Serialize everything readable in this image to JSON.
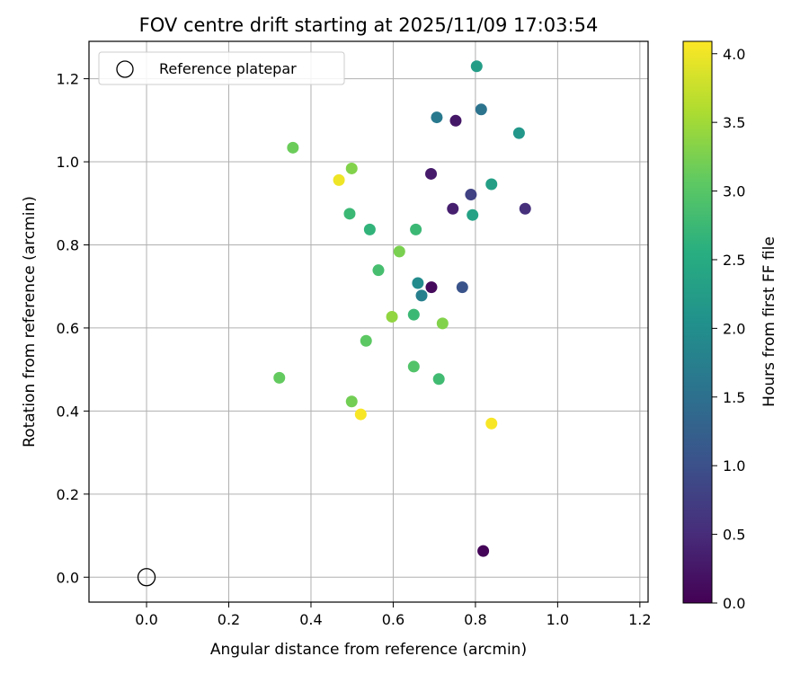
{
  "chart_data": {
    "type": "scatter",
    "title": "FOV centre drift starting at 2025/11/09 17:03:54",
    "xlabel": "Angular distance from reference (arcmin)",
    "ylabel": "Rotation from reference (arcmin)",
    "xlim": [
      -0.14,
      1.22
    ],
    "ylim": [
      -0.06,
      1.29
    ],
    "xticks": [
      0.0,
      0.2,
      0.4,
      0.6,
      0.8,
      1.0,
      1.2
    ],
    "yticks": [
      0.0,
      0.2,
      0.4,
      0.6,
      0.8,
      1.0,
      1.2
    ],
    "xtick_labels": [
      "0.0",
      "0.2",
      "0.4",
      "0.6",
      "0.8",
      "1.0",
      "1.2"
    ],
    "ytick_labels": [
      "0.0",
      "0.2",
      "0.4",
      "0.6",
      "0.8",
      "1.0",
      "1.2"
    ],
    "grid": true,
    "legend": {
      "position": "top-left",
      "entries": [
        {
          "label": "Reference platepar",
          "marker": "open-circle"
        }
      ]
    },
    "reference_point": {
      "x": 0.0,
      "y": 0.0
    },
    "colorbar": {
      "label": "Hours from first FF file",
      "colormap": "viridis",
      "range": [
        0.0,
        4.09
      ],
      "ticks": [
        0.0,
        0.5,
        1.0,
        1.5,
        2.0,
        2.5,
        3.0,
        3.5,
        4.0
      ],
      "tick_labels": [
        "0.0",
        "0.5",
        "1.0",
        "1.5",
        "2.0",
        "2.5",
        "3.0",
        "3.5",
        "4.0"
      ]
    },
    "points": [
      {
        "x": 0.819,
        "y": 0.063,
        "hours": 0.05
      },
      {
        "x": 0.693,
        "y": 0.698,
        "hours": 0.1
      },
      {
        "x": 0.752,
        "y": 1.099,
        "hours": 0.25
      },
      {
        "x": 0.692,
        "y": 0.971,
        "hours": 0.3
      },
      {
        "x": 0.745,
        "y": 0.887,
        "hours": 0.35
      },
      {
        "x": 0.921,
        "y": 0.887,
        "hours": 0.55
      },
      {
        "x": 0.789,
        "y": 0.921,
        "hours": 0.8
      },
      {
        "x": 0.768,
        "y": 0.698,
        "hours": 1.05
      },
      {
        "x": 0.814,
        "y": 1.126,
        "hours": 1.55
      },
      {
        "x": 0.706,
        "y": 1.107,
        "hours": 1.65
      },
      {
        "x": 0.669,
        "y": 0.678,
        "hours": 1.75
      },
      {
        "x": 0.66,
        "y": 0.708,
        "hours": 1.95
      },
      {
        "x": 0.906,
        "y": 1.069,
        "hours": 2.15
      },
      {
        "x": 0.803,
        "y": 1.23,
        "hours": 2.25
      },
      {
        "x": 0.839,
        "y": 0.946,
        "hours": 2.3
      },
      {
        "x": 0.793,
        "y": 0.872,
        "hours": 2.35
      },
      {
        "x": 0.543,
        "y": 0.837,
        "hours": 2.65
      },
      {
        "x": 0.655,
        "y": 0.837,
        "hours": 2.75
      },
      {
        "x": 0.494,
        "y": 0.875,
        "hours": 2.75
      },
      {
        "x": 0.564,
        "y": 0.739,
        "hours": 2.85
      },
      {
        "x": 0.65,
        "y": 0.632,
        "hours": 2.75
      },
      {
        "x": 0.711,
        "y": 0.477,
        "hours": 2.8
      },
      {
        "x": 0.65,
        "y": 0.507,
        "hours": 2.95
      },
      {
        "x": 0.534,
        "y": 0.569,
        "hours": 3.05
      },
      {
        "x": 0.323,
        "y": 0.48,
        "hours": 3.1
      },
      {
        "x": 0.356,
        "y": 1.034,
        "hours": 3.15
      },
      {
        "x": 0.499,
        "y": 0.423,
        "hours": 3.2
      },
      {
        "x": 0.615,
        "y": 0.784,
        "hours": 3.25
      },
      {
        "x": 0.72,
        "y": 0.611,
        "hours": 3.3
      },
      {
        "x": 0.499,
        "y": 0.984,
        "hours": 3.3
      },
      {
        "x": 0.597,
        "y": 0.627,
        "hours": 3.4
      },
      {
        "x": 0.468,
        "y": 0.956,
        "hours": 4.0
      },
      {
        "x": 0.521,
        "y": 0.392,
        "hours": 4.05
      },
      {
        "x": 0.839,
        "y": 0.37,
        "hours": 4.05
      }
    ]
  }
}
